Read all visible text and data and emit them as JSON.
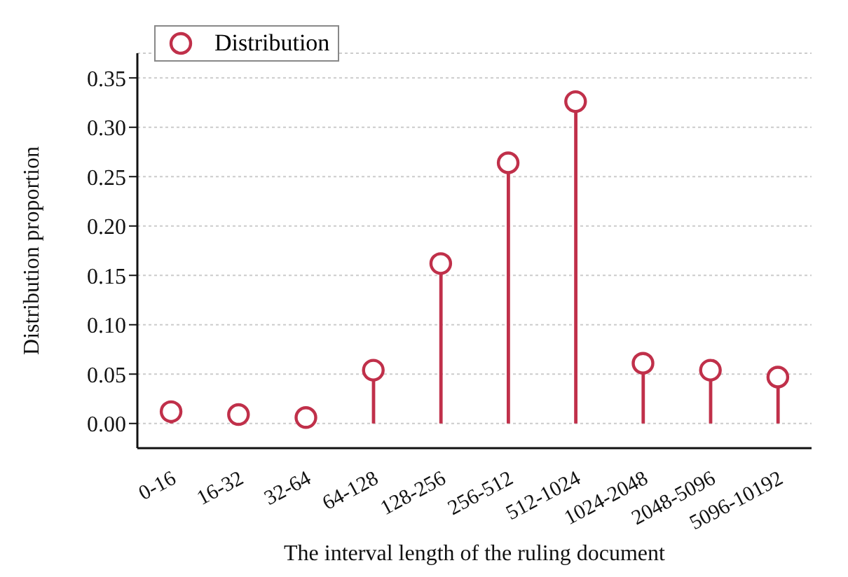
{
  "chart_data": {
    "type": "lollipop",
    "xlabel": "The interval length of the ruling document",
    "ylabel": "Distribution proportion",
    "categories": [
      "0-16",
      "16-32",
      "32-64",
      "64-128",
      "128-256",
      "256-512",
      "512-1024",
      "1024-2048",
      "2048-5096",
      "5096-10192"
    ],
    "series": [
      {
        "name": "Distribution",
        "color": "#c0304a",
        "values": [
          0.012,
          0.009,
          0.006,
          0.054,
          0.162,
          0.264,
          0.326,
          0.061,
          0.054,
          0.047
        ]
      }
    ],
    "ylim": [
      -0.025,
      0.375
    ],
    "yticks": [
      {
        "value": 0,
        "label": "0.00"
      },
      {
        "value": 0.05,
        "label": "0.05"
      },
      {
        "value": 0.1,
        "label": "0.10"
      },
      {
        "value": 0.15,
        "label": "0.15"
      },
      {
        "value": 0.2,
        "label": "0.20"
      },
      {
        "value": 0.25,
        "label": "0.25"
      },
      {
        "value": 0.3,
        "label": "0.30"
      },
      {
        "value": 0.35,
        "label": "0.35"
      }
    ],
    "grid": "y",
    "legend": "top left",
    "marker": "circle"
  }
}
